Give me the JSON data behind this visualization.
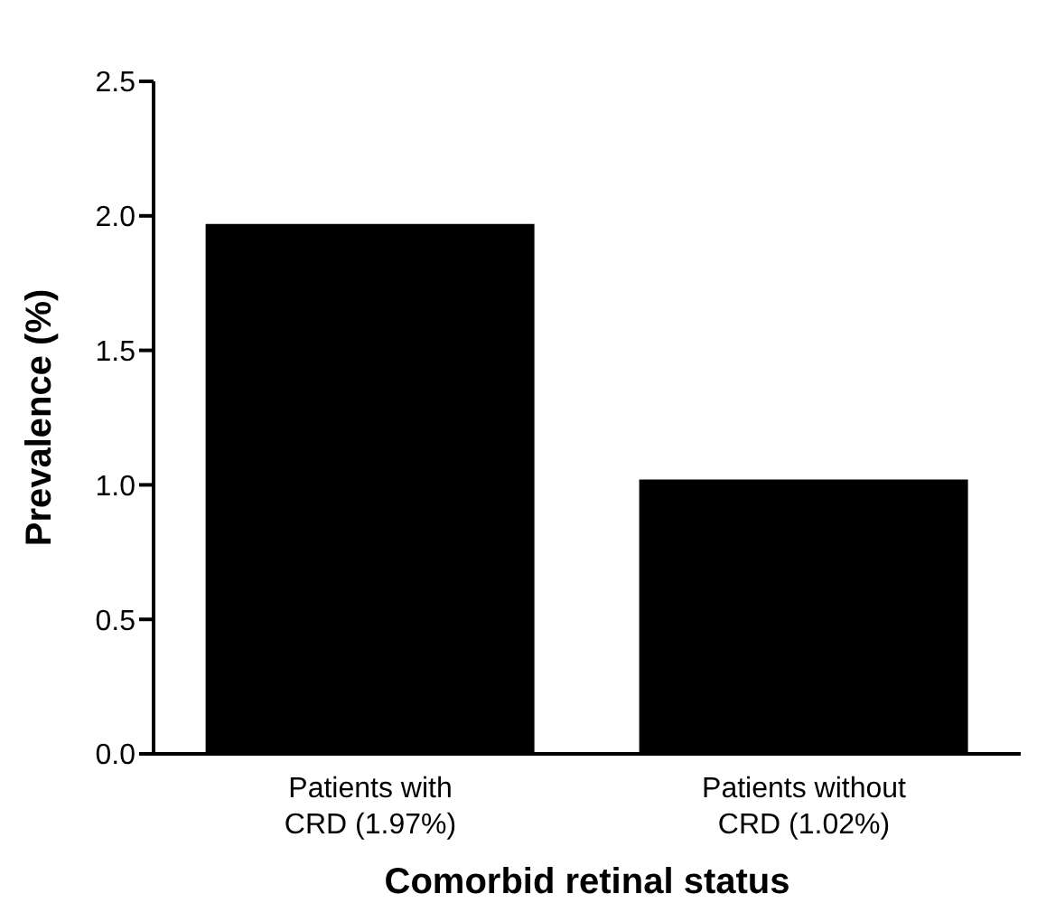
{
  "chart_data": {
    "type": "bar",
    "xlabel": "Comorbid retinal status",
    "ylabel": "Prevalence (%)",
    "categories": [
      "Patients with CRD (1.97%)",
      "Patients without CRD (1.02%)"
    ],
    "values": [
      1.97,
      1.02
    ],
    "color": "#000000",
    "ylim": [
      0,
      2.5
    ],
    "yticks": [
      {
        "value": 0,
        "label": "0.0"
      },
      0.5,
      {
        "value": 1,
        "label": "1.0"
      },
      1.5,
      {
        "value": 2,
        "label": "2.0"
      },
      2.5
    ],
    "grid": false,
    "legend": false
  }
}
